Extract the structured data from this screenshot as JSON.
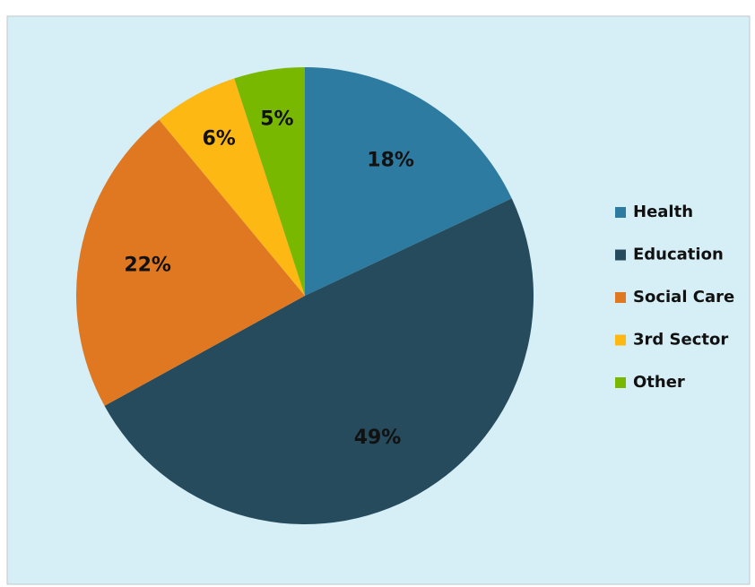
{
  "chart_data": {
    "type": "pie",
    "categories": [
      "Health",
      "Education",
      "Social Care",
      "3rd Sector",
      "Other"
    ],
    "values": [
      18,
      49,
      22,
      6,
      5
    ],
    "value_labels": [
      "18%",
      "49%",
      "22%",
      "6%",
      "5%"
    ],
    "colors": [
      "#2e7ba1",
      "#254b5d",
      "#e07821",
      "#fdb813",
      "#79b800"
    ],
    "legend": "right"
  }
}
